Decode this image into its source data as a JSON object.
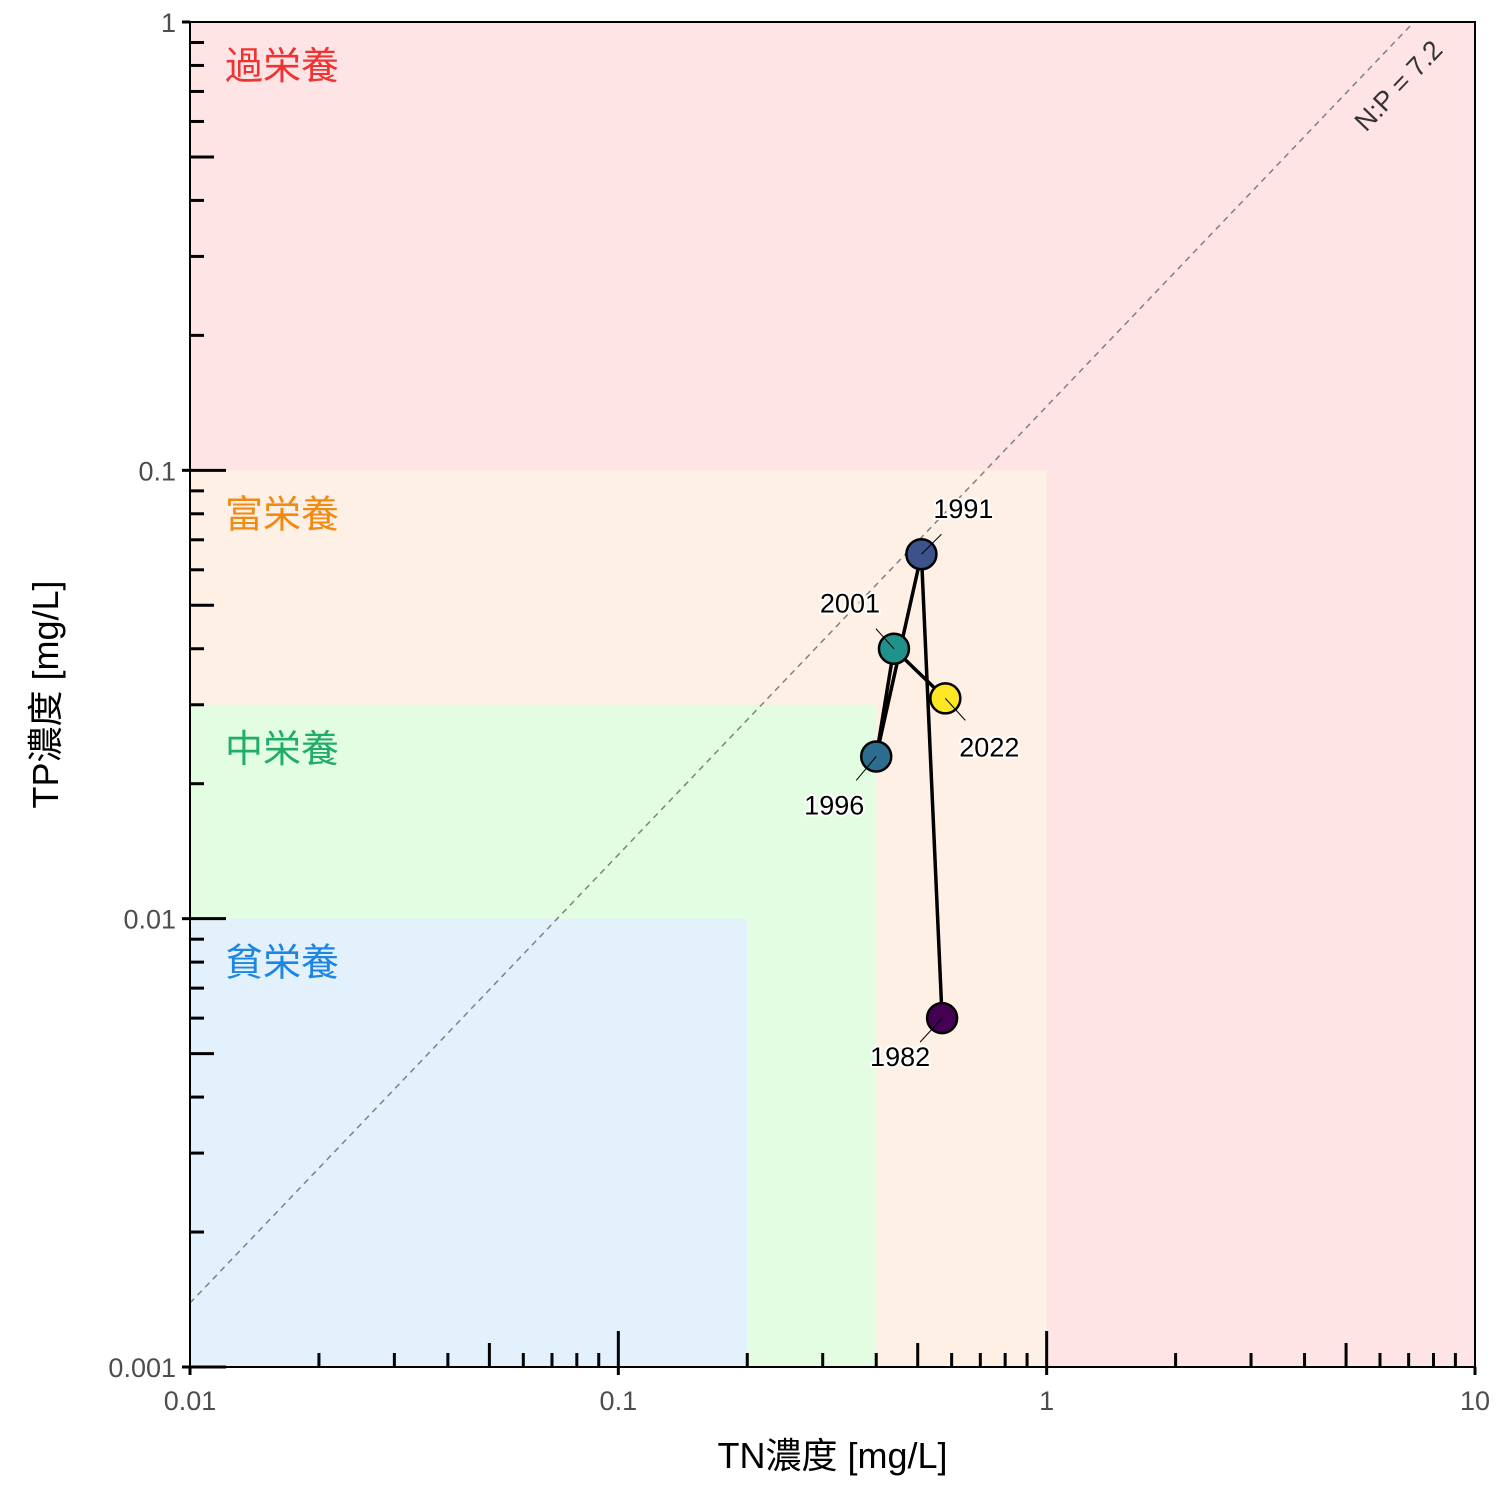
{
  "chart_data": {
    "type": "scatter",
    "scale": {
      "x": "log",
      "y": "log"
    },
    "xlim": [
      0.01,
      10
    ],
    "ylim": [
      0.001,
      1
    ],
    "xlabel": "TN濃度 [mg/L]",
    "ylabel": "TP濃度 [mg/L]",
    "x_ticks": [
      0.01,
      0.1,
      1,
      10
    ],
    "x_tick_labels": [
      "0.01",
      "0.1",
      "1",
      "10"
    ],
    "y_ticks": [
      0.001,
      0.01,
      0.1,
      1
    ],
    "y_tick_labels": [
      "0.001",
      "0.01",
      "0.1",
      "1"
    ],
    "grid": false,
    "zones": [
      {
        "label": "過栄養",
        "tn_max": 10,
        "tp_max": 1,
        "fill": "#ffe4e6",
        "text_color": "#ee3333"
      },
      {
        "label": "富栄養",
        "tn_max": 1,
        "tp_max": 0.1,
        "fill": "#fef0e4",
        "text_color": "#f08a12"
      },
      {
        "label": "中栄養",
        "tn_max": 0.4,
        "tp_max": 0.03,
        "fill": "#e2fde2",
        "text_color": "#20ad6a"
      },
      {
        "label": "貧栄養",
        "tn_max": 0.2,
        "tp_max": 0.01,
        "fill": "#e3f1fc",
        "text_color": "#1c86e2"
      }
    ],
    "ratio_line": {
      "label": "N:P = 7.2",
      "np_ratio": 7.2,
      "style": "dashed",
      "color": "#808080"
    },
    "series": [
      {
        "points": [
          {
            "year": "1982",
            "x": 0.57,
            "y": 0.006,
            "color": "#440154"
          },
          {
            "year": "1991",
            "x": 0.51,
            "y": 0.065,
            "color": "#3b528b"
          },
          {
            "year": "1996",
            "x": 0.4,
            "y": 0.023,
            "color": "#2c6c8e"
          },
          {
            "year": "2001",
            "x": 0.44,
            "y": 0.04,
            "color": "#21918c"
          },
          {
            "year": "2022",
            "x": 0.58,
            "y": 0.031,
            "color": "#fde725"
          }
        ]
      }
    ]
  }
}
